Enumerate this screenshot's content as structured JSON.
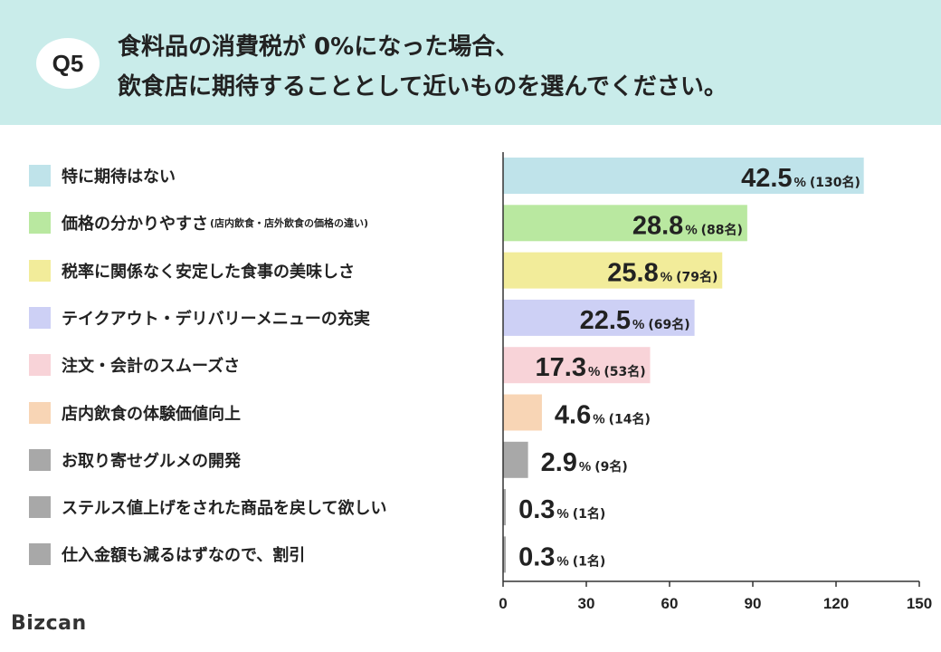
{
  "header": {
    "badge": "Q5",
    "title_line1": "食料品の消費税が 0%になった場合、",
    "title_line2": "飲食店に期待することとして近いものを選んでください。"
  },
  "chart_data": {
    "type": "bar",
    "orientation": "horizontal",
    "categories": [
      {
        "label": "特に期待はない",
        "note": ""
      },
      {
        "label": "価格の分かりやすさ",
        "note": "(店内飲食・店外飲食の価格の違い)"
      },
      {
        "label": "税率に関係なく安定した食事の美味しさ",
        "note": ""
      },
      {
        "label": "テイクアウト・デリバリーメニューの充実",
        "note": ""
      },
      {
        "label": "注文・会計のスムーズさ",
        "note": ""
      },
      {
        "label": "店内飲食の体験価値向上",
        "note": ""
      },
      {
        "label": "お取り寄せグルメの開発",
        "note": ""
      },
      {
        "label": "ステルス値上げをされた商品を戻して欲しい",
        "note": ""
      },
      {
        "label": "仕入金額も減るはずなので、割引",
        "note": ""
      }
    ],
    "values": [
      130,
      88,
      79,
      69,
      53,
      14,
      9,
      1,
      1
    ],
    "percent_labels": [
      "42.5",
      "28.8",
      "25.8",
      "22.5",
      "17.3",
      "4.6",
      "2.9",
      "0.3",
      "0.3"
    ],
    "count_labels": [
      "(130名)",
      "(88名)",
      "(79名)",
      "(69名)",
      "(53名)",
      "(14名)",
      "(9名)",
      "(1名)",
      "(1名)"
    ],
    "percent_sign": "%",
    "colors": [
      "#bfe3ea",
      "#b9e8a0",
      "#f2ec9a",
      "#cdd0f5",
      "#f8d3d8",
      "#f8d5b5",
      "#a8a8a8",
      "#a8a8a8",
      "#a8a8a8"
    ],
    "xlim": [
      0,
      150
    ],
    "xticks": [
      "0",
      "30",
      "60",
      "90",
      "120",
      "150"
    ],
    "grid": false,
    "xlabel": "",
    "ylabel": ""
  },
  "footer": {
    "logo": "Bizcan"
  }
}
